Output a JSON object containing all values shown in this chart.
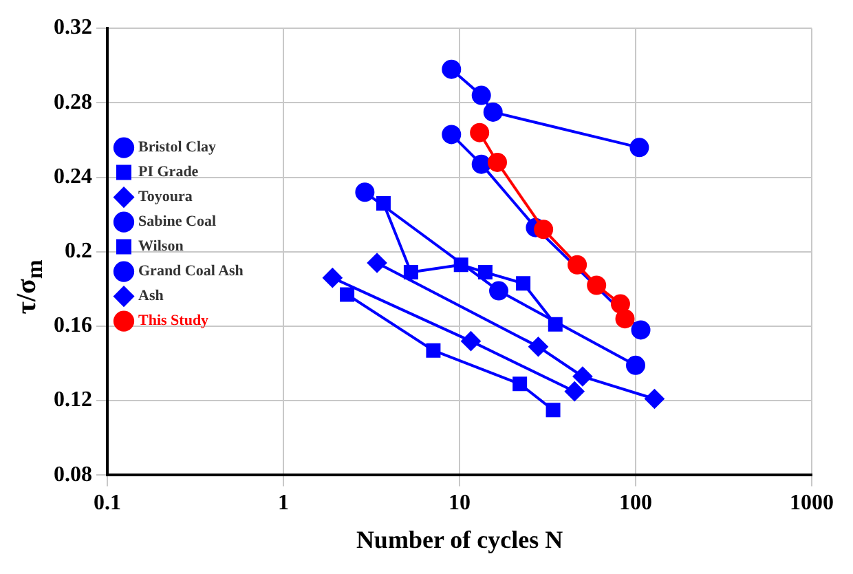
{
  "chart_data": {
    "type": "scatter",
    "xlabel": "Number of cycles N",
    "ylabel": "τ/σ$_{m}$",
    "log": "x",
    "xlim": [
      0.1,
      1000
    ],
    "xticks": [
      0.1,
      1,
      10,
      100,
      1000
    ],
    "ylim": [
      0.08,
      0.32
    ],
    "yticks": [
      0.08,
      0.12,
      0.16,
      0.2,
      0.24,
      0.28,
      0.32
    ],
    "grid": true,
    "legend": "left",
    "line_style": "solid",
    "series": [
      {
        "name": "Bristol Clay",
        "type": "line",
        "marker": "circle",
        "color": "#0000ff",
        "x": [
          9,
          13.3,
          15.5,
          105
        ],
        "values": [
          0.298,
          0.284,
          0.275,
          0.256
        ]
      },
      {
        "name": "PI Grade",
        "type": "line",
        "marker": "square",
        "color": "#0000ff",
        "x": [
          2.3,
          7.1,
          22,
          34
        ],
        "values": [
          0.177,
          0.147,
          0.129,
          0.115
        ]
      },
      {
        "name": "Toyoura",
        "type": "line",
        "marker": "diamond",
        "color": "#0000ff",
        "x": [
          1.9,
          11.6,
          45
        ],
        "values": [
          0.186,
          0.152,
          0.125
        ]
      },
      {
        "name": "Sabine Coal",
        "type": "line",
        "marker": "circle",
        "color": "#0000ff",
        "x": [
          2.9,
          16.7,
          100
        ],
        "values": [
          0.232,
          0.179,
          0.139
        ]
      },
      {
        "name": "Wilson",
        "type": "line",
        "marker": "square",
        "color": "#0000ff",
        "x": [
          3.7,
          5.3,
          10.2,
          14,
          23,
          35
        ],
        "values": [
          0.226,
          0.189,
          0.193,
          0.189,
          0.183,
          0.161
        ]
      },
      {
        "name": "Grand Coal Ash",
        "type": "line",
        "marker": "circle",
        "color": "#0000ff",
        "x": [
          9,
          13.3,
          27,
          107
        ],
        "values": [
          0.263,
          0.247,
          0.213,
          0.158
        ]
      },
      {
        "name": "Ash",
        "type": "line",
        "marker": "diamond",
        "color": "#0000ff",
        "x": [
          3.4,
          28,
          50,
          128
        ],
        "values": [
          0.194,
          0.149,
          0.133,
          0.121
        ]
      },
      {
        "name": "This Study",
        "type": "line",
        "marker": "circle",
        "color": "#ff0000",
        "x": [
          13,
          16.4,
          30,
          46.6,
          60,
          82,
          87
        ],
        "values": [
          0.264,
          0.248,
          0.212,
          0.193,
          0.182,
          0.172,
          0.164
        ]
      }
    ]
  }
}
